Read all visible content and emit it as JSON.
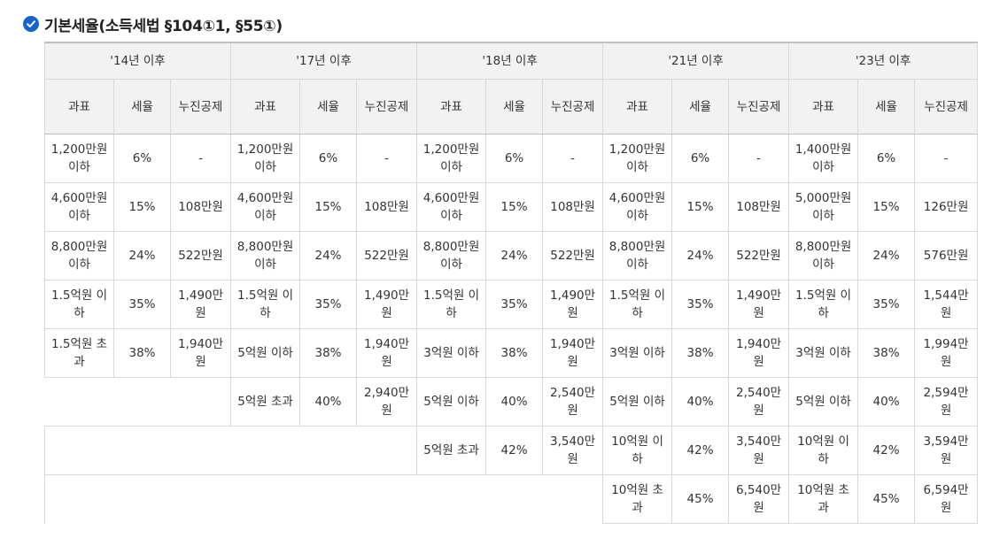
{
  "heading": {
    "title": "기본세율(소득세법 §104①1, §55①)",
    "icon": "check-circle-icon",
    "icon_color": "#1a63c5"
  },
  "table": {
    "periods": [
      "'14년 이후",
      "'17년 이후",
      "'18년 이후",
      "'21년 이후",
      "'23년 이후"
    ],
    "subheaders": [
      "과표",
      "세율",
      "누진공제"
    ],
    "rows": [
      [
        [
          "1,200만원 이하",
          "6%",
          "-"
        ],
        [
          "1,200만원 이하",
          "6%",
          "-"
        ],
        [
          "1,200만원 이하",
          "6%",
          "-"
        ],
        [
          "1,200만원 이하",
          "6%",
          "-"
        ],
        [
          "1,400만원 이하",
          "6%",
          "-"
        ]
      ],
      [
        [
          "4,600만원 이하",
          "15%",
          "108만원"
        ],
        [
          "4,600만원 이하",
          "15%",
          "108만원"
        ],
        [
          "4,600만원 이하",
          "15%",
          "108만원"
        ],
        [
          "4,600만원 이하",
          "15%",
          "108만원"
        ],
        [
          "5,000만원 이하",
          "15%",
          "126만원"
        ]
      ],
      [
        [
          "8,800만원 이하",
          "24%",
          "522만원"
        ],
        [
          "8,800만원 이하",
          "24%",
          "522만원"
        ],
        [
          "8,800만원 이하",
          "24%",
          "522만원"
        ],
        [
          "8,800만원 이하",
          "24%",
          "522만원"
        ],
        [
          "8,800만원 이하",
          "24%",
          "576만원"
        ]
      ],
      [
        [
          "1.5억원 이하",
          "35%",
          "1,490만원"
        ],
        [
          "1.5억원 이하",
          "35%",
          "1,490만원"
        ],
        [
          "1.5억원 이하",
          "35%",
          "1,490만원"
        ],
        [
          "1.5억원 이하",
          "35%",
          "1,490만원"
        ],
        [
          "1.5억원 이하",
          "35%",
          "1,544만원"
        ]
      ],
      [
        [
          "1.5억원 초과",
          "38%",
          "1,940만원"
        ],
        [
          "5억원 이하",
          "38%",
          "1,940만원"
        ],
        [
          "3억원 이하",
          "38%",
          "1,940만원"
        ],
        [
          "3억원 이하",
          "38%",
          "1,940만원"
        ],
        [
          "3억원 이하",
          "38%",
          "1,994만원"
        ]
      ],
      [
        null,
        [
          "5억원 초과",
          "40%",
          "2,940만원"
        ],
        [
          "5억원 이하",
          "40%",
          "2,540만원"
        ],
        [
          "5억원 이하",
          "40%",
          "2,540만원"
        ],
        [
          "5억원 이하",
          "40%",
          "2,594만원"
        ]
      ],
      [
        null,
        null,
        [
          "5억원 초과",
          "42%",
          "3,540만원"
        ],
        [
          "10억원 이하",
          "42%",
          "3,540만원"
        ],
        [
          "10억원 이하",
          "42%",
          "3,594만원"
        ]
      ],
      [
        null,
        null,
        null,
        [
          "10억원 초과",
          "45%",
          "6,540만원"
        ],
        [
          "10억원 초과",
          "45%",
          "6,594만원"
        ]
      ]
    ]
  }
}
